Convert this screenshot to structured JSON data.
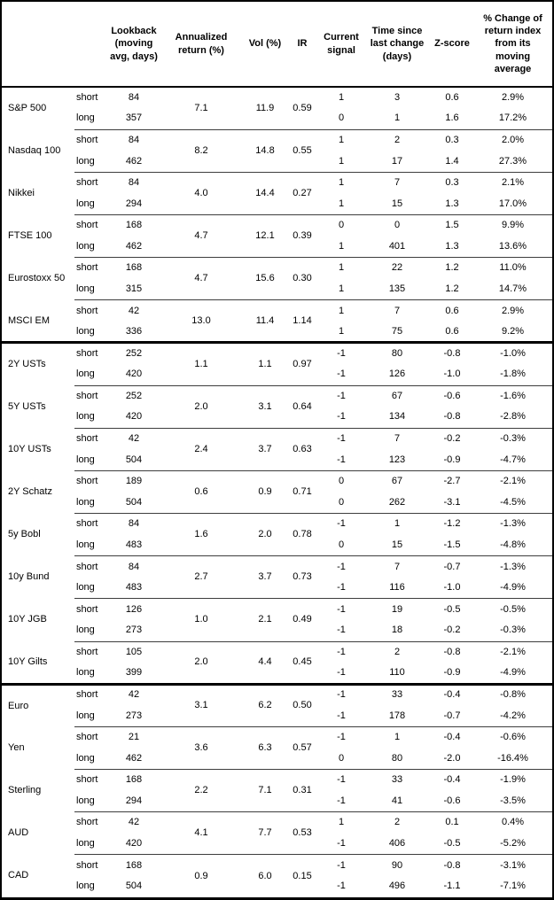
{
  "colors": {
    "border": "#000000",
    "separator": "#3d3d3d",
    "text": "#000000",
    "background": "#ffffff"
  },
  "table": {
    "header": {
      "asset": "",
      "side": "",
      "lookback": "Lookback (moving avg, days)",
      "annualized_return": "Annualized return (%)",
      "vol": "Vol (%)",
      "ir": "IR",
      "current_signal": "Current signal",
      "time_since": "Time since last change (days)",
      "z_score": "Z-score",
      "pct_change": "% Change of return index from its moving average"
    },
    "sections": [
      {
        "assets": [
          {
            "name": "S&P 500",
            "annualized_return": "7.1",
            "vol": "11.9",
            "ir": "0.59",
            "rows": [
              {
                "side": "short",
                "lookback": "84",
                "signal": "1",
                "time_since": "3",
                "z_score": "0.6",
                "pct_change": "2.9%"
              },
              {
                "side": "long",
                "lookback": "357",
                "signal": "0",
                "time_since": "1",
                "z_score": "1.6",
                "pct_change": "17.2%"
              }
            ]
          },
          {
            "name": "Nasdaq 100",
            "annualized_return": "8.2",
            "vol": "14.8",
            "ir": "0.55",
            "rows": [
              {
                "side": "short",
                "lookback": "84",
                "signal": "1",
                "time_since": "2",
                "z_score": "0.3",
                "pct_change": "2.0%"
              },
              {
                "side": "long",
                "lookback": "462",
                "signal": "1",
                "time_since": "17",
                "z_score": "1.4",
                "pct_change": "27.3%"
              }
            ]
          },
          {
            "name": "Nikkei",
            "annualized_return": "4.0",
            "vol": "14.4",
            "ir": "0.27",
            "rows": [
              {
                "side": "short",
                "lookback": "84",
                "signal": "1",
                "time_since": "7",
                "z_score": "0.3",
                "pct_change": "2.1%"
              },
              {
                "side": "long",
                "lookback": "294",
                "signal": "1",
                "time_since": "15",
                "z_score": "1.3",
                "pct_change": "17.0%"
              }
            ]
          },
          {
            "name": "FTSE 100",
            "annualized_return": "4.7",
            "vol": "12.1",
            "ir": "0.39",
            "rows": [
              {
                "side": "short",
                "lookback": "168",
                "signal": "0",
                "time_since": "0",
                "z_score": "1.5",
                "pct_change": "9.9%"
              },
              {
                "side": "long",
                "lookback": "462",
                "signal": "1",
                "time_since": "401",
                "z_score": "1.3",
                "pct_change": "13.6%"
              }
            ]
          },
          {
            "name": "Eurostoxx 50",
            "annualized_return": "4.7",
            "vol": "15.6",
            "ir": "0.30",
            "rows": [
              {
                "side": "short",
                "lookback": "168",
                "signal": "1",
                "time_since": "22",
                "z_score": "1.2",
                "pct_change": "11.0%"
              },
              {
                "side": "long",
                "lookback": "315",
                "signal": "1",
                "time_since": "135",
                "z_score": "1.2",
                "pct_change": "14.7%"
              }
            ]
          },
          {
            "name": "MSCI EM",
            "annualized_return": "13.0",
            "vol": "11.4",
            "ir": "1.14",
            "rows": [
              {
                "side": "short",
                "lookback": "42",
                "signal": "1",
                "time_since": "7",
                "z_score": "0.6",
                "pct_change": "2.9%"
              },
              {
                "side": "long",
                "lookback": "336",
                "signal": "1",
                "time_since": "75",
                "z_score": "0.6",
                "pct_change": "9.2%"
              }
            ]
          }
        ]
      },
      {
        "assets": [
          {
            "name": "2Y USTs",
            "annualized_return": "1.1",
            "vol": "1.1",
            "ir": "0.97",
            "rows": [
              {
                "side": "short",
                "lookback": "252",
                "signal": "-1",
                "time_since": "80",
                "z_score": "-0.8",
                "pct_change": "-1.0%"
              },
              {
                "side": "long",
                "lookback": "420",
                "signal": "-1",
                "time_since": "126",
                "z_score": "-1.0",
                "pct_change": "-1.8%"
              }
            ]
          },
          {
            "name": "5Y USTs",
            "annualized_return": "2.0",
            "vol": "3.1",
            "ir": "0.64",
            "rows": [
              {
                "side": "short",
                "lookback": "252",
                "signal": "-1",
                "time_since": "67",
                "z_score": "-0.6",
                "pct_change": "-1.6%"
              },
              {
                "side": "long",
                "lookback": "420",
                "signal": "-1",
                "time_since": "134",
                "z_score": "-0.8",
                "pct_change": "-2.8%"
              }
            ]
          },
          {
            "name": "10Y USTs",
            "annualized_return": "2.4",
            "vol": "3.7",
            "ir": "0.63",
            "rows": [
              {
                "side": "short",
                "lookback": "42",
                "signal": "-1",
                "time_since": "7",
                "z_score": "-0.2",
                "pct_change": "-0.3%"
              },
              {
                "side": "long",
                "lookback": "504",
                "signal": "-1",
                "time_since": "123",
                "z_score": "-0.9",
                "pct_change": "-4.7%"
              }
            ]
          },
          {
            "name": "2Y Schatz",
            "annualized_return": "0.6",
            "vol": "0.9",
            "ir": "0.71",
            "rows": [
              {
                "side": "short",
                "lookback": "189",
                "signal": "0",
                "time_since": "67",
                "z_score": "-2.7",
                "pct_change": "-2.1%"
              },
              {
                "side": "long",
                "lookback": "504",
                "signal": "0",
                "time_since": "262",
                "z_score": "-3.1",
                "pct_change": "-4.5%"
              }
            ]
          },
          {
            "name": "5y Bobl",
            "annualized_return": "1.6",
            "vol": "2.0",
            "ir": "0.78",
            "rows": [
              {
                "side": "short",
                "lookback": "84",
                "signal": "-1",
                "time_since": "1",
                "z_score": "-1.2",
                "pct_change": "-1.3%"
              },
              {
                "side": "long",
                "lookback": "483",
                "signal": "0",
                "time_since": "15",
                "z_score": "-1.5",
                "pct_change": "-4.8%"
              }
            ]
          },
          {
            "name": "10y Bund",
            "annualized_return": "2.7",
            "vol": "3.7",
            "ir": "0.73",
            "rows": [
              {
                "side": "short",
                "lookback": "84",
                "signal": "-1",
                "time_since": "7",
                "z_score": "-0.7",
                "pct_change": "-1.3%"
              },
              {
                "side": "long",
                "lookback": "483",
                "signal": "-1",
                "time_since": "116",
                "z_score": "-1.0",
                "pct_change": "-4.9%"
              }
            ]
          },
          {
            "name": "10Y JGB",
            "annualized_return": "1.0",
            "vol": "2.1",
            "ir": "0.49",
            "rows": [
              {
                "side": "short",
                "lookback": "126",
                "signal": "-1",
                "time_since": "19",
                "z_score": "-0.5",
                "pct_change": "-0.5%"
              },
              {
                "side": "long",
                "lookback": "273",
                "signal": "-1",
                "time_since": "18",
                "z_score": "-0.2",
                "pct_change": "-0.3%"
              }
            ]
          },
          {
            "name": "10Y Gilts",
            "annualized_return": "2.0",
            "vol": "4.4",
            "ir": "0.45",
            "rows": [
              {
                "side": "short",
                "lookback": "105",
                "signal": "-1",
                "time_since": "2",
                "z_score": "-0.8",
                "pct_change": "-2.1%"
              },
              {
                "side": "long",
                "lookback": "399",
                "signal": "-1",
                "time_since": "110",
                "z_score": "-0.9",
                "pct_change": "-4.9%"
              }
            ]
          }
        ]
      },
      {
        "assets": [
          {
            "name": "Euro",
            "annualized_return": "3.1",
            "vol": "6.2",
            "ir": "0.50",
            "rows": [
              {
                "side": "short",
                "lookback": "42",
                "signal": "-1",
                "time_since": "33",
                "z_score": "-0.4",
                "pct_change": "-0.8%"
              },
              {
                "side": "long",
                "lookback": "273",
                "signal": "-1",
                "time_since": "178",
                "z_score": "-0.7",
                "pct_change": "-4.2%"
              }
            ]
          },
          {
            "name": "Yen",
            "annualized_return": "3.6",
            "vol": "6.3",
            "ir": "0.57",
            "rows": [
              {
                "side": "short",
                "lookback": "21",
                "signal": "-1",
                "time_since": "1",
                "z_score": "-0.4",
                "pct_change": "-0.6%"
              },
              {
                "side": "long",
                "lookback": "462",
                "signal": "0",
                "time_since": "80",
                "z_score": "-2.0",
                "pct_change": "-16.4%"
              }
            ]
          },
          {
            "name": "Sterling",
            "annualized_return": "2.2",
            "vol": "7.1",
            "ir": "0.31",
            "rows": [
              {
                "side": "short",
                "lookback": "168",
                "signal": "-1",
                "time_since": "33",
                "z_score": "-0.4",
                "pct_change": "-1.9%"
              },
              {
                "side": "long",
                "lookback": "294",
                "signal": "-1",
                "time_since": "41",
                "z_score": "-0.6",
                "pct_change": "-3.5%"
              }
            ]
          },
          {
            "name": "AUD",
            "annualized_return": "4.1",
            "vol": "7.7",
            "ir": "0.53",
            "rows": [
              {
                "side": "short",
                "lookback": "42",
                "signal": "1",
                "time_since": "2",
                "z_score": "0.1",
                "pct_change": "0.4%"
              },
              {
                "side": "long",
                "lookback": "420",
                "signal": "-1",
                "time_since": "406",
                "z_score": "-0.5",
                "pct_change": "-5.2%"
              }
            ]
          },
          {
            "name": "CAD",
            "annualized_return": "0.9",
            "vol": "6.0",
            "ir": "0.15",
            "rows": [
              {
                "side": "short",
                "lookback": "168",
                "signal": "-1",
                "time_since": "90",
                "z_score": "-0.8",
                "pct_change": "-3.1%"
              },
              {
                "side": "long",
                "lookback": "504",
                "signal": "-1",
                "time_since": "496",
                "z_score": "-1.1",
                "pct_change": "-7.1%"
              }
            ]
          }
        ]
      }
    ]
  }
}
